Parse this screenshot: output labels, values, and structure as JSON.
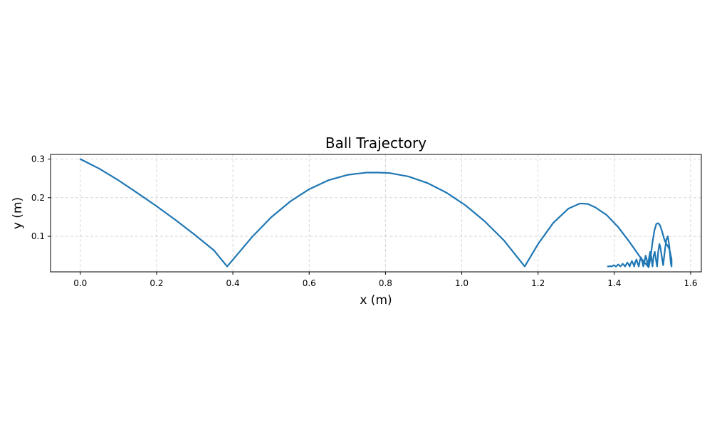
{
  "chart_data": {
    "type": "line",
    "title": "Ball Trajectory",
    "xlabel": "x (m)",
    "ylabel": "y (m)",
    "xlim": [
      -0.078,
      1.628
    ],
    "ylim": [
      0.008,
      0.312
    ],
    "xticks": [
      0.0,
      0.2,
      0.4,
      0.6,
      0.8,
      1.0,
      1.2,
      1.4,
      1.6
    ],
    "xtick_labels": [
      "0.0",
      "0.2",
      "0.4",
      "0.6",
      "0.8",
      "1.0",
      "1.2",
      "1.4",
      "1.6"
    ],
    "yticks": [
      0.1,
      0.2,
      0.3
    ],
    "ytick_labels": [
      "0.1",
      "0.2",
      "0.3"
    ],
    "grid": true,
    "series": [
      {
        "color": "#1f77b4",
        "x": [
          0.0,
          0.05,
          0.1,
          0.15,
          0.2,
          0.25,
          0.3,
          0.35,
          0.385,
          0.45,
          0.5,
          0.55,
          0.6,
          0.65,
          0.7,
          0.75,
          0.78,
          0.81,
          0.86,
          0.91,
          0.96,
          1.01,
          1.06,
          1.11,
          1.165,
          1.2,
          1.24,
          1.28,
          1.31,
          1.33,
          1.35,
          1.38,
          1.41,
          1.44,
          1.47,
          1.49,
          1.495,
          1.5,
          1.505,
          1.51,
          1.515,
          1.52,
          1.525,
          1.53,
          1.535,
          1.54,
          1.545,
          1.55,
          1.55,
          1.548,
          1.544,
          1.54,
          1.536,
          1.532,
          1.528,
          1.524,
          1.52,
          1.518,
          1.515,
          1.512,
          1.509,
          1.506,
          1.503,
          1.5,
          1.497,
          1.494,
          1.491,
          1.488,
          1.485,
          1.482,
          1.479,
          1.476,
          1.473,
          1.47,
          1.467,
          1.464,
          1.461,
          1.458,
          1.455,
          1.452,
          1.449,
          1.446,
          1.443,
          1.44,
          1.437,
          1.434,
          1.431,
          1.428,
          1.425,
          1.422,
          1.419,
          1.416,
          1.413,
          1.41,
          1.407,
          1.404,
          1.401,
          1.398,
          1.395,
          1.392,
          1.389,
          1.386,
          1.383
        ],
        "y": [
          0.3,
          0.275,
          0.245,
          0.212,
          0.178,
          0.142,
          0.104,
          0.064,
          0.022,
          0.098,
          0.149,
          0.19,
          0.222,
          0.245,
          0.259,
          0.265,
          0.265,
          0.264,
          0.255,
          0.238,
          0.213,
          0.18,
          0.139,
          0.09,
          0.022,
          0.08,
          0.135,
          0.172,
          0.185,
          0.184,
          0.175,
          0.155,
          0.124,
          0.085,
          0.043,
          0.02,
          0.045,
          0.085,
          0.115,
          0.132,
          0.134,
          0.128,
          0.113,
          0.095,
          0.082,
          0.075,
          0.065,
          0.04,
          0.022,
          0.03,
          0.075,
          0.1,
          0.09,
          0.06,
          0.025,
          0.05,
          0.075,
          0.08,
          0.06,
          0.022,
          0.04,
          0.06,
          0.05,
          0.022,
          0.045,
          0.06,
          0.045,
          0.022,
          0.04,
          0.05,
          0.035,
          0.022,
          0.035,
          0.045,
          0.038,
          0.022,
          0.03,
          0.04,
          0.034,
          0.022,
          0.03,
          0.036,
          0.03,
          0.022,
          0.028,
          0.032,
          0.027,
          0.022,
          0.026,
          0.029,
          0.025,
          0.022,
          0.025,
          0.027,
          0.024,
          0.022,
          0.024,
          0.025,
          0.023,
          0.022,
          0.023,
          0.022,
          0.022
        ]
      }
    ]
  }
}
